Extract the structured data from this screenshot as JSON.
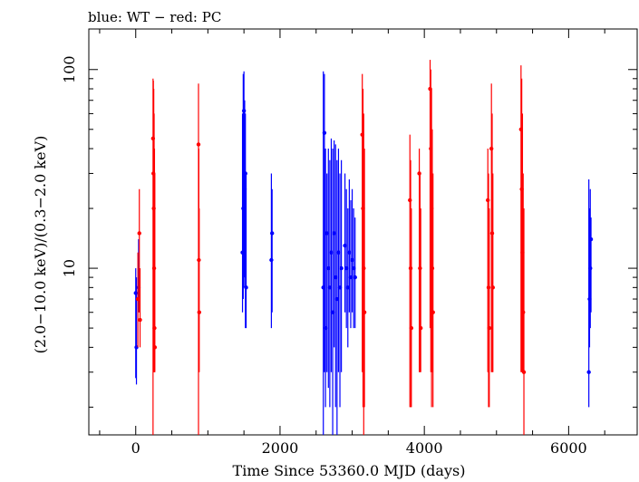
{
  "chart_data": {
    "type": "scatter",
    "title": "blue: WT − red: PC",
    "xlabel": "Time Since 53360.0 MJD (days)",
    "ylabel": "(2.0−10.0 keV)/(0.3−2.0 keV)",
    "xlim": [
      -650,
      6950
    ],
    "ylim": [
      1.45,
      160
    ],
    "yscale": "log",
    "x_ticks": [
      0,
      2000,
      4000,
      6000
    ],
    "x_tick_labels": [
      "0",
      "2000",
      "4000",
      "6000"
    ],
    "y_ticks": [
      10,
      100
    ],
    "y_tick_labels": [
      "10",
      "100"
    ],
    "grid": false,
    "series": [
      {
        "key": "wt",
        "color": "#0000ff",
        "points": [
          {
            "x": 0,
            "y": 7.5,
            "lo": 2.8,
            "hi": 10
          },
          {
            "x": 10,
            "y": 4,
            "lo": 2.6,
            "hi": 9
          },
          {
            "x": 40,
            "y": 8,
            "lo": 6,
            "hi": 14
          },
          {
            "x": 1480,
            "y": 12,
            "lo": 6,
            "hi": 60
          },
          {
            "x": 1490,
            "y": 20,
            "lo": 7,
            "hi": 95
          },
          {
            "x": 1500,
            "y": 62,
            "lo": 8,
            "hi": 98
          },
          {
            "x": 1510,
            "y": 25,
            "lo": 9,
            "hi": 70
          },
          {
            "x": 1520,
            "y": 30,
            "lo": 5,
            "hi": 60
          },
          {
            "x": 1530,
            "y": 8,
            "lo": 5,
            "hi": 30
          },
          {
            "x": 1880,
            "y": 11,
            "lo": 5,
            "hi": 30
          },
          {
            "x": 1890,
            "y": 15,
            "lo": 6,
            "hi": 25
          },
          {
            "x": 2600,
            "y": 8,
            "lo": 1.45,
            "hi": 98
          },
          {
            "x": 2615,
            "y": 48,
            "lo": 3,
            "hi": 95
          },
          {
            "x": 2630,
            "y": 5,
            "lo": 2,
            "hi": 40
          },
          {
            "x": 2650,
            "y": 15,
            "lo": 3,
            "hi": 30
          },
          {
            "x": 2670,
            "y": 10,
            "lo": 2.5,
            "hi": 40
          },
          {
            "x": 2690,
            "y": 8,
            "lo": 2,
            "hi": 35
          },
          {
            "x": 2710,
            "y": 12,
            "lo": 3,
            "hi": 45
          },
          {
            "x": 2730,
            "y": 6,
            "lo": 1.45,
            "hi": 40
          },
          {
            "x": 2750,
            "y": 15,
            "lo": 4,
            "hi": 44
          },
          {
            "x": 2770,
            "y": 9,
            "lo": 2,
            "hi": 42
          },
          {
            "x": 2790,
            "y": 7,
            "lo": 1.45,
            "hi": 35
          },
          {
            "x": 2810,
            "y": 12,
            "lo": 3,
            "hi": 40
          },
          {
            "x": 2830,
            "y": 8,
            "lo": 2,
            "hi": 30
          },
          {
            "x": 2850,
            "y": 10,
            "lo": 3,
            "hi": 35
          },
          {
            "x": 2900,
            "y": 13,
            "lo": 6,
            "hi": 30
          },
          {
            "x": 2920,
            "y": 10,
            "lo": 5,
            "hi": 25
          },
          {
            "x": 2940,
            "y": 8,
            "lo": 4,
            "hi": 20
          },
          {
            "x": 2960,
            "y": 12,
            "lo": 6,
            "hi": 28
          },
          {
            "x": 2980,
            "y": 9,
            "lo": 5,
            "hi": 22
          },
          {
            "x": 3000,
            "y": 11,
            "lo": 6,
            "hi": 25
          },
          {
            "x": 3020,
            "y": 10,
            "lo": 5,
            "hi": 20
          },
          {
            "x": 3040,
            "y": 9,
            "lo": 5,
            "hi": 18
          },
          {
            "x": 6280,
            "y": 3,
            "lo": 2,
            "hi": 28
          },
          {
            "x": 6290,
            "y": 7,
            "lo": 4,
            "hi": 20
          },
          {
            "x": 6300,
            "y": 10,
            "lo": 5,
            "hi": 25
          },
          {
            "x": 6310,
            "y": 14,
            "lo": 6,
            "hi": 18
          }
        ]
      },
      {
        "key": "pc",
        "color": "#ff0000",
        "points": [
          {
            "x": 30,
            "y": 7,
            "lo": 4,
            "hi": 12
          },
          {
            "x": 50,
            "y": 15,
            "lo": 6,
            "hi": 25
          },
          {
            "x": 60,
            "y": 5.5,
            "lo": 4,
            "hi": 10
          },
          {
            "x": 240,
            "y": 45,
            "lo": 1.45,
            "hi": 90
          },
          {
            "x": 245,
            "y": 30,
            "lo": 3,
            "hi": 88
          },
          {
            "x": 250,
            "y": 20,
            "lo": 3,
            "hi": 80
          },
          {
            "x": 255,
            "y": 10,
            "lo": 3,
            "hi": 60
          },
          {
            "x": 260,
            "y": 5,
            "lo": 3,
            "hi": 40
          },
          {
            "x": 265,
            "y": 4,
            "lo": 3,
            "hi": 30
          },
          {
            "x": 870,
            "y": 42,
            "lo": 1.45,
            "hi": 85
          },
          {
            "x": 875,
            "y": 11,
            "lo": 3,
            "hi": 40
          },
          {
            "x": 880,
            "y": 6,
            "lo": 3,
            "hi": 20
          },
          {
            "x": 3140,
            "y": 47,
            "lo": 3,
            "hi": 95
          },
          {
            "x": 3150,
            "y": 20,
            "lo": 2,
            "hi": 80
          },
          {
            "x": 3160,
            "y": 10,
            "lo": 1.45,
            "hi": 60
          },
          {
            "x": 3170,
            "y": 6,
            "lo": 2,
            "hi": 40
          },
          {
            "x": 3800,
            "y": 22,
            "lo": 2,
            "hi": 47
          },
          {
            "x": 3810,
            "y": 10,
            "lo": 2,
            "hi": 35
          },
          {
            "x": 3820,
            "y": 5,
            "lo": 2,
            "hi": 20
          },
          {
            "x": 3930,
            "y": 30,
            "lo": 3,
            "hi": 40
          },
          {
            "x": 3940,
            "y": 10,
            "lo": 3,
            "hi": 30
          },
          {
            "x": 3950,
            "y": 5,
            "lo": 3,
            "hi": 20
          },
          {
            "x": 4080,
            "y": 80,
            "lo": 5,
            "hi": 112
          },
          {
            "x": 4090,
            "y": 40,
            "lo": 3,
            "hi": 100
          },
          {
            "x": 4100,
            "y": 20,
            "lo": 2,
            "hi": 80
          },
          {
            "x": 4110,
            "y": 10,
            "lo": 3,
            "hi": 50
          },
          {
            "x": 4120,
            "y": 6,
            "lo": 2,
            "hi": 30
          },
          {
            "x": 4880,
            "y": 22,
            "lo": 3,
            "hi": 40
          },
          {
            "x": 4890,
            "y": 8,
            "lo": 2,
            "hi": 30
          },
          {
            "x": 4900,
            "y": 5,
            "lo": 2,
            "hi": 20
          },
          {
            "x": 4930,
            "y": 40,
            "lo": 3,
            "hi": 85
          },
          {
            "x": 4940,
            "y": 15,
            "lo": 3,
            "hi": 60
          },
          {
            "x": 4950,
            "y": 8,
            "lo": 3,
            "hi": 30
          },
          {
            "x": 5340,
            "y": 50,
            "lo": 3,
            "hi": 105
          },
          {
            "x": 5350,
            "y": 25,
            "lo": 3,
            "hi": 90
          },
          {
            "x": 5360,
            "y": 12,
            "lo": 3,
            "hi": 60
          },
          {
            "x": 5370,
            "y": 6,
            "lo": 3,
            "hi": 30
          },
          {
            "x": 5380,
            "y": 3,
            "lo": 1.45,
            "hi": 20
          }
        ]
      }
    ]
  }
}
